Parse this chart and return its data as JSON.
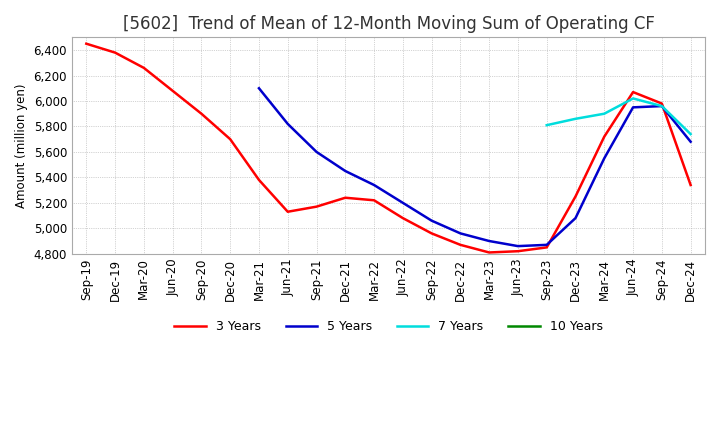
{
  "title": "[5602]  Trend of Mean of 12-Month Moving Sum of Operating CF",
  "ylabel": "Amount (million yen)",
  "ylim": [
    4800,
    6500
  ],
  "yticks": [
    4800,
    5000,
    5200,
    5400,
    5600,
    5800,
    6000,
    6200,
    6400
  ],
  "background_color": "#ffffff",
  "plot_bg_color": "#ffffff",
  "grid_color": "#aaaaaa",
  "x_labels": [
    "Sep-19",
    "Dec-19",
    "Mar-20",
    "Jun-20",
    "Sep-20",
    "Dec-20",
    "Mar-21",
    "Jun-21",
    "Sep-21",
    "Dec-21",
    "Mar-22",
    "Jun-22",
    "Sep-22",
    "Dec-22",
    "Mar-23",
    "Jun-23",
    "Sep-23",
    "Dec-23",
    "Mar-24",
    "Jun-24",
    "Sep-24",
    "Dec-24"
  ],
  "series": {
    "3 Years": {
      "color": "#ff0000",
      "data_indices": [
        0,
        1,
        2,
        3,
        4,
        5,
        6,
        7,
        8,
        9,
        10,
        11,
        12,
        13,
        14,
        15,
        16,
        17,
        18,
        19,
        20,
        21
      ],
      "values": [
        6450,
        6380,
        6260,
        6080,
        5900,
        5700,
        5380,
        5130,
        5170,
        5240,
        5220,
        5080,
        4960,
        4870,
        4810,
        4820,
        4850,
        5250,
        5720,
        6070,
        5980,
        5340
      ]
    },
    "5 Years": {
      "color": "#0000cc",
      "data_indices": [
        6,
        7,
        8,
        9,
        10,
        11,
        12,
        13,
        14,
        15,
        16,
        17,
        18,
        19,
        20,
        21
      ],
      "values": [
        6100,
        5820,
        5600,
        5450,
        5340,
        5200,
        5060,
        4960,
        4900,
        4860,
        4870,
        5080,
        5550,
        5950,
        5960,
        5680
      ]
    },
    "7 Years": {
      "color": "#00dddd",
      "data_indices": [
        16,
        17,
        18,
        19,
        20,
        21
      ],
      "values": [
        5810,
        5860,
        5900,
        6020,
        5960,
        5740
      ]
    },
    "10 Years": {
      "color": "#008800",
      "data_indices": [],
      "values": []
    }
  },
  "legend_order": [
    "3 Years",
    "5 Years",
    "7 Years",
    "10 Years"
  ],
  "title_fontsize": 12,
  "axis_fontsize": 8.5,
  "legend_fontsize": 9
}
